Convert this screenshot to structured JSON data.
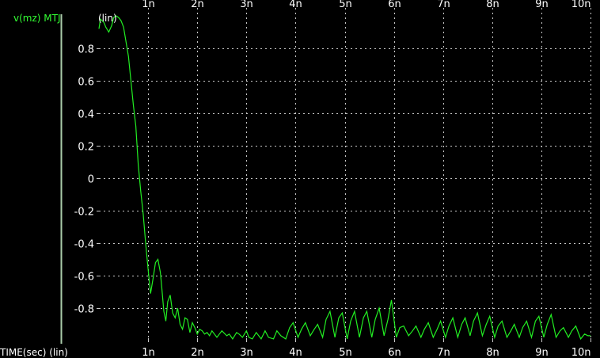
{
  "colors": {
    "background": "#000000",
    "grid": "#c8c8c8",
    "trace": "#22ee22",
    "legend_bar": "#aaccaa",
    "text": "#ffffff"
  },
  "chart_data": {
    "type": "line",
    "xlabel": "TIME(sec) (lin)",
    "y_scale_label": "(lin)",
    "xlim": [
      0,
      10
    ],
    "ylim": [
      -1,
      1
    ],
    "grid": true,
    "x_ticks": [
      1,
      2,
      3,
      4,
      5,
      6,
      7,
      8,
      9,
      10
    ],
    "x_tick_labels": [
      "1n",
      "2n",
      "3n",
      "4n",
      "5n",
      "6n",
      "7n",
      "8n",
      "9n",
      "10n"
    ],
    "y_ticks": [
      0.8,
      0.6,
      0.4,
      0.2,
      0,
      -0.2,
      -0.4,
      -0.6,
      -0.8
    ],
    "y_tick_labels": [
      "0.8",
      "0.6",
      "0.4",
      "0.2",
      "0",
      "-0.2",
      "-0.4",
      "-0.6",
      "-0.8"
    ],
    "series": [
      {
        "name": "v(mz) MTJ",
        "x": [
          0,
          0.03,
          0.1,
          0.14,
          0.2,
          0.26,
          0.3,
          0.35,
          0.4,
          0.45,
          0.5,
          0.6,
          0.7,
          0.75,
          0.8,
          0.85,
          0.9,
          0.95,
          1.0,
          1.05,
          1.1,
          1.15,
          1.2,
          1.25,
          1.28,
          1.32,
          1.36,
          1.4,
          1.45,
          1.5,
          1.55,
          1.6,
          1.65,
          1.7,
          1.75,
          1.8,
          1.85,
          1.9,
          1.95,
          2.0,
          2.05,
          2.1,
          2.15,
          2.2,
          2.25,
          2.3,
          2.35,
          2.4,
          2.45,
          2.5,
          2.6,
          2.65,
          2.72,
          2.8,
          2.85,
          2.92,
          3.0,
          3.05,
          3.12,
          3.2,
          3.3,
          3.38,
          3.45,
          3.55,
          3.62,
          3.7,
          3.8,
          3.88,
          3.95,
          4.05,
          4.12,
          4.2,
          4.3,
          4.38,
          4.45,
          4.55,
          4.62,
          4.7,
          4.8,
          4.88,
          4.95,
          5.05,
          5.12,
          5.2,
          5.3,
          5.38,
          5.45,
          5.55,
          5.62,
          5.7,
          5.8,
          5.88,
          5.95,
          6.05,
          6.12,
          6.2,
          6.3,
          6.38,
          6.45,
          6.55,
          6.62,
          6.7,
          6.8,
          6.88,
          6.95,
          7.05,
          7.12,
          7.2,
          7.3,
          7.38,
          7.45,
          7.55,
          7.62,
          7.7,
          7.8,
          7.88,
          7.95,
          8.05,
          8.12,
          8.2,
          8.3,
          8.38,
          8.45,
          8.55,
          8.62,
          8.7,
          8.8,
          8.88,
          8.95,
          9.05,
          9.12,
          9.2,
          9.3,
          9.38,
          9.45,
          9.55,
          9.62,
          9.7,
          9.8,
          9.88,
          9.95,
          10.0
        ],
        "y": [
          0.92,
          0.98,
          0.96,
          0.93,
          0.9,
          0.94,
          0.99,
          1.0,
          0.99,
          0.97,
          0.93,
          0.75,
          0.45,
          0.32,
          0.08,
          -0.08,
          -0.22,
          -0.4,
          -0.56,
          -0.71,
          -0.62,
          -0.52,
          -0.5,
          -0.58,
          -0.68,
          -0.82,
          -0.88,
          -0.76,
          -0.72,
          -0.83,
          -0.86,
          -0.8,
          -0.9,
          -0.93,
          -0.86,
          -0.87,
          -0.95,
          -0.89,
          -0.92,
          -0.96,
          -0.93,
          -0.94,
          -0.96,
          -0.95,
          -0.97,
          -0.94,
          -0.96,
          -0.98,
          -0.96,
          -0.94,
          -0.97,
          -0.96,
          -0.99,
          -0.95,
          -0.96,
          -0.98,
          -0.94,
          -0.98,
          -0.99,
          -0.95,
          -0.99,
          -0.94,
          -0.98,
          -0.99,
          -0.94,
          -0.97,
          -0.99,
          -0.92,
          -0.89,
          -0.98,
          -0.93,
          -0.89,
          -0.97,
          -0.93,
          -0.9,
          -0.98,
          -0.87,
          -0.82,
          -0.98,
          -0.86,
          -0.83,
          -0.99,
          -0.88,
          -0.82,
          -0.98,
          -0.86,
          -0.82,
          -0.98,
          -0.87,
          -0.8,
          -0.97,
          -0.87,
          -0.75,
          -0.98,
          -0.92,
          -0.91,
          -0.97,
          -0.94,
          -0.91,
          -0.98,
          -0.93,
          -0.89,
          -0.98,
          -0.93,
          -0.88,
          -0.98,
          -0.91,
          -0.86,
          -0.98,
          -0.9,
          -0.86,
          -0.97,
          -0.88,
          -0.83,
          -0.97,
          -0.9,
          -0.85,
          -0.98,
          -0.91,
          -0.88,
          -0.98,
          -0.94,
          -0.9,
          -0.98,
          -0.92,
          -0.88,
          -0.98,
          -0.88,
          -0.85,
          -0.98,
          -0.9,
          -0.84,
          -0.98,
          -0.94,
          -0.92,
          -0.98,
          -0.94,
          -0.91,
          -0.99,
          -0.96,
          -0.97,
          -0.97
        ]
      }
    ]
  }
}
